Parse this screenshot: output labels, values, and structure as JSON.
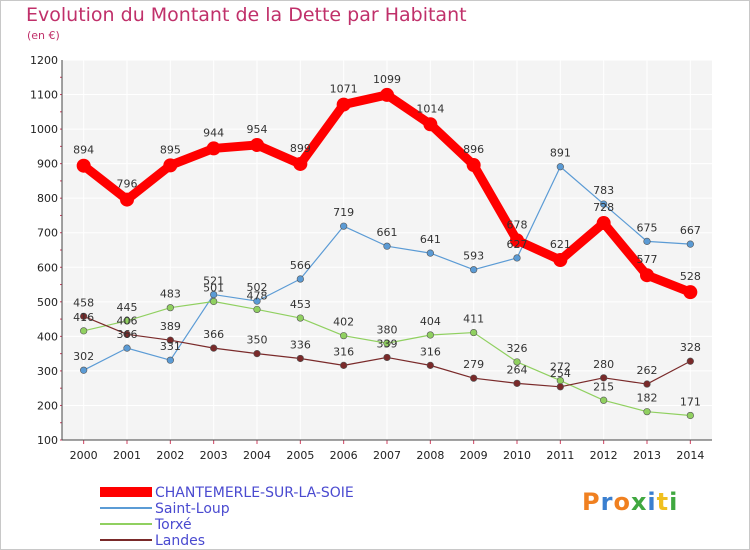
{
  "chart_data": {
    "type": "line",
    "title": "Evolution du Montant de la Dette par Habitant",
    "subtitle": "(en €)",
    "xlabel": "",
    "ylabel": "",
    "ylim": [
      100,
      1200
    ],
    "yticks": [
      100,
      200,
      300,
      400,
      500,
      600,
      700,
      800,
      900,
      1000,
      1100,
      1200
    ],
    "x": [
      "2000",
      "2001",
      "2002",
      "2003",
      "2004",
      "2005",
      "2006",
      "2007",
      "2008",
      "2009",
      "2010",
      "2011",
      "2012",
      "2013",
      "2014"
    ],
    "grid": true,
    "legend_position": "bottom-left",
    "series": [
      {
        "name": "CHANTEMERLE-SUR-LA-SOIE",
        "color": "#ff0000",
        "values": [
          894,
          796,
          895,
          944,
          954,
          899,
          1071,
          1099,
          1014,
          896,
          678,
          621,
          728,
          577,
          528
        ]
      },
      {
        "name": "Saint-Loup",
        "color": "#5b9bd5",
        "values": [
          302,
          366,
          331,
          521,
          502,
          566,
          719,
          661,
          641,
          593,
          627,
          891,
          783,
          675,
          667
        ]
      },
      {
        "name": "Torxé",
        "color": "#90d060",
        "values": [
          416,
          445,
          483,
          501,
          478,
          453,
          402,
          380,
          404,
          411,
          326,
          272,
          215,
          182,
          171
        ]
      },
      {
        "name": "Landes",
        "color": "#7a2a2a",
        "values": [
          458,
          406,
          389,
          366,
          350,
          336,
          316,
          339,
          316,
          279,
          264,
          254,
          280,
          262,
          328
        ]
      }
    ]
  },
  "branding": {
    "logo_text": "Proxiti",
    "logo_colors": [
      "#f08020",
      "#3a7fd0",
      "#f08020",
      "#40a840",
      "#3a7fd0",
      "#f0c020",
      "#40a840"
    ]
  }
}
